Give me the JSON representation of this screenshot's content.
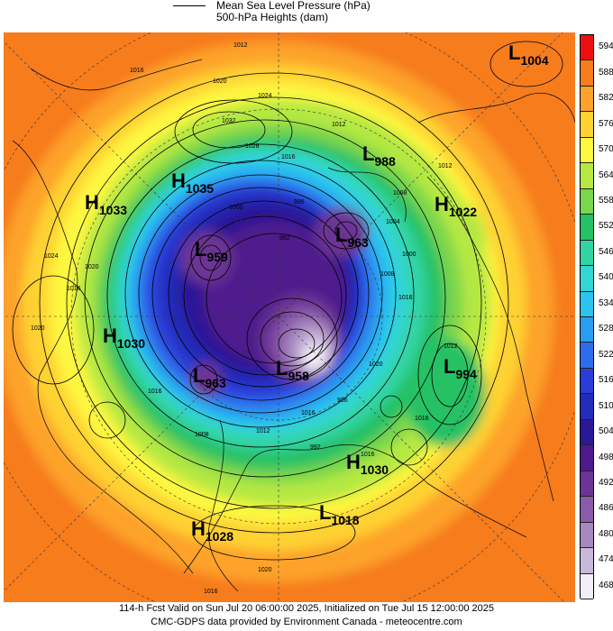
{
  "legend": {
    "line_label": "Mean Sea Level Pressure (hPa)",
    "fill_label": "500-hPa Heights (dam)"
  },
  "colorbar": {
    "levels": [
      "594",
      "588",
      "582",
      "576",
      "570",
      "564",
      "558",
      "552",
      "546",
      "540",
      "534",
      "528",
      "522",
      "516",
      "510",
      "504",
      "498",
      "492",
      "486",
      "480",
      "474",
      "468"
    ],
    "colors": [
      "#ee1010",
      "#f77c1c",
      "#fda32c",
      "#fed233",
      "#fdf73f",
      "#b5e843",
      "#7ad64c",
      "#26c165",
      "#33d4a4",
      "#33d6d4",
      "#2bc4ef",
      "#2a9df0",
      "#2f6ceb",
      "#2b3cd8",
      "#242aba",
      "#2a1896",
      "#4f1a8d",
      "#6c3495",
      "#8b5bab",
      "#a888c0",
      "#c9b8d9",
      "#f2eef7"
    ]
  },
  "centers": [
    {
      "type": "L",
      "value": "1004"
    },
    {
      "type": "L",
      "value": "988"
    },
    {
      "type": "H",
      "value": "1022"
    },
    {
      "type": "L",
      "value": "963"
    },
    {
      "type": "H",
      "value": "1035"
    },
    {
      "type": "H",
      "value": "1033"
    },
    {
      "type": "L",
      "value": "959"
    },
    {
      "type": "H",
      "value": "1030"
    },
    {
      "type": "L",
      "value": "963"
    },
    {
      "type": "L",
      "value": "958"
    },
    {
      "type": "L",
      "value": "994"
    },
    {
      "type": "H",
      "value": "1030"
    },
    {
      "type": "L",
      "value": "1018"
    },
    {
      "type": "H",
      "value": "1028"
    }
  ],
  "isobar_labels": [
    "1012",
    "1016",
    "1020",
    "1024",
    "1032",
    "1028",
    "1016",
    "1012",
    "1008",
    "1004",
    "1000",
    "996",
    "992",
    "1012",
    "1016",
    "1020",
    "1024",
    "1020",
    "1016",
    "1008",
    "1012",
    "1016",
    "1020",
    "1016",
    "1016",
    "1016",
    "1008",
    "1012",
    "996",
    "992",
    "1000",
    "1020",
    "1016"
  ],
  "footer": {
    "line1": "114-h Fcst Valid on Sun Jul 20 06:00:00 2025, Initialized on Tue Jul 15 12:00:00 2025",
    "line2": "CMC-GDPS data provided by Environment Canada - meteocentre.com"
  }
}
